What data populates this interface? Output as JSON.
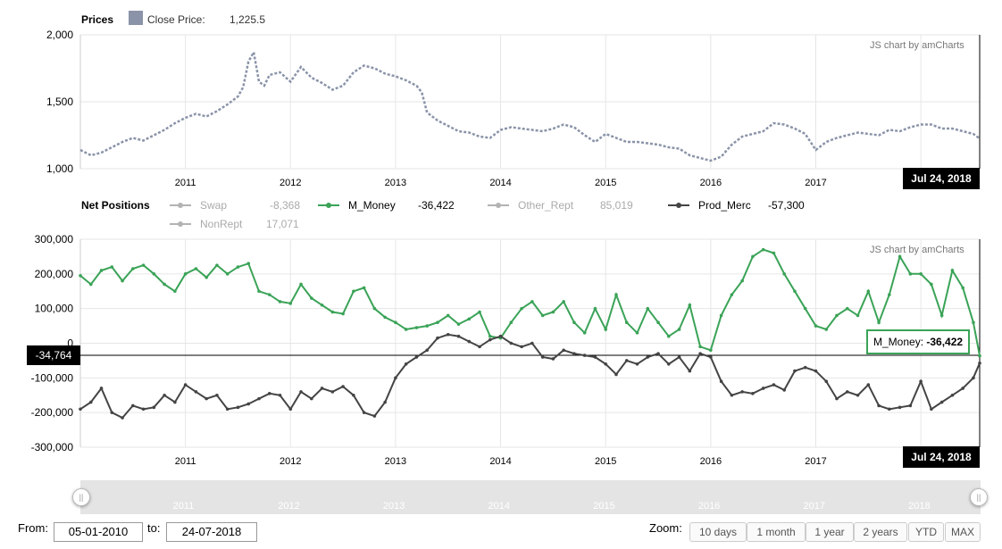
{
  "prices_panel": {
    "title": "Prices",
    "legend_label": "Close Price:",
    "legend_value": "1,225.5",
    "legend_color": "#8a93a8",
    "credit": "JS chart by amCharts",
    "cursor_date": "Jul 24, 2018"
  },
  "positions_panel": {
    "title": "Net Positions",
    "credit": "JS chart by amCharts",
    "cursor_date": "Jul 24, 2018",
    "cursor_value": "-34,764",
    "balloon_label": "M_Money:",
    "balloon_value": "-36,422",
    "legend": [
      {
        "name": "Swap",
        "value": "-8,368",
        "color": "#b3b3b3",
        "active": false
      },
      {
        "name": "M_Money",
        "value": "-36,422",
        "color": "#3aa357",
        "active": true
      },
      {
        "name": "Other_Rept",
        "value": "85,019",
        "color": "#b3b3b3",
        "active": false
      },
      {
        "name": "Prod_Merc",
        "value": "-57,300",
        "color": "#444444",
        "active": true
      },
      {
        "name": "NonRept",
        "value": "17,071",
        "color": "#b3b3b3",
        "active": false
      }
    ]
  },
  "scrollbar": {
    "labels": [
      "2011",
      "2012",
      "2013",
      "2014",
      "2015",
      "2016",
      "2017",
      "2018"
    ],
    "handle_left": "||",
    "handle_right": "||"
  },
  "controls": {
    "from_label": "From:",
    "from_value": "05-01-2010",
    "to_label": "to:",
    "to_value": "24-07-2018",
    "zoom_label": "Zoom:",
    "zoom_buttons": [
      "10 days",
      "1 month",
      "1 year",
      "2 years",
      "YTD",
      "MAX"
    ]
  },
  "chart_data": [
    {
      "type": "line",
      "title": "Prices",
      "ylim": [
        1000,
        2000
      ],
      "yticks": [
        "1,000",
        "1,500",
        "2,000"
      ],
      "ytick_values": [
        1000,
        1500,
        2000
      ],
      "xticks": [
        "2011",
        "2012",
        "2013",
        "2014",
        "2015",
        "2016",
        "2017",
        "2018"
      ],
      "xlim": [
        2010.0,
        2018.56
      ],
      "grid": true,
      "series": [
        {
          "name": "Close Price",
          "color": "#8a93a8",
          "x": [
            2010.0,
            2010.1,
            2010.2,
            2010.3,
            2010.4,
            2010.5,
            2010.6,
            2010.7,
            2010.8,
            2010.9,
            2011.0,
            2011.1,
            2011.2,
            2011.3,
            2011.4,
            2011.5,
            2011.55,
            2011.6,
            2011.65,
            2011.7,
            2011.75,
            2011.8,
            2011.9,
            2012.0,
            2012.1,
            2012.15,
            2012.2,
            2012.3,
            2012.4,
            2012.5,
            2012.6,
            2012.7,
            2012.8,
            2012.9,
            2013.0,
            2013.1,
            2013.2,
            2013.25,
            2013.3,
            2013.4,
            2013.5,
            2013.6,
            2013.7,
            2013.8,
            2013.9,
            2014.0,
            2014.1,
            2014.2,
            2014.3,
            2014.4,
            2014.5,
            2014.6,
            2014.7,
            2014.8,
            2014.9,
            2015.0,
            2015.1,
            2015.2,
            2015.3,
            2015.4,
            2015.5,
            2015.6,
            2015.7,
            2015.8,
            2015.9,
            2016.0,
            2016.1,
            2016.2,
            2016.3,
            2016.4,
            2016.5,
            2016.6,
            2016.7,
            2016.8,
            2016.9,
            2017.0,
            2017.1,
            2017.2,
            2017.3,
            2017.4,
            2017.5,
            2017.6,
            2017.7,
            2017.8,
            2017.9,
            2018.0,
            2018.1,
            2018.2,
            2018.3,
            2018.4,
            2018.5,
            2018.56
          ],
          "values": [
            1140,
            1100,
            1120,
            1160,
            1200,
            1230,
            1210,
            1250,
            1290,
            1340,
            1380,
            1410,
            1390,
            1430,
            1480,
            1540,
            1610,
            1800,
            1870,
            1650,
            1620,
            1700,
            1720,
            1650,
            1760,
            1720,
            1680,
            1640,
            1590,
            1620,
            1720,
            1770,
            1750,
            1710,
            1690,
            1660,
            1620,
            1570,
            1420,
            1360,
            1320,
            1280,
            1270,
            1240,
            1230,
            1290,
            1310,
            1300,
            1290,
            1280,
            1300,
            1330,
            1310,
            1250,
            1200,
            1260,
            1230,
            1200,
            1200,
            1190,
            1180,
            1160,
            1150,
            1100,
            1080,
            1060,
            1090,
            1180,
            1240,
            1260,
            1280,
            1340,
            1330,
            1300,
            1260,
            1140,
            1200,
            1230,
            1250,
            1270,
            1260,
            1250,
            1290,
            1280,
            1310,
            1330,
            1330,
            1300,
            1300,
            1280,
            1260,
            1225.5
          ]
        }
      ]
    },
    {
      "type": "line",
      "title": "Net Positions",
      "ylim": [
        -300000,
        300000
      ],
      "yticks": [
        "-300,000",
        "-200,000",
        "-100,000",
        "0",
        "100,000",
        "200,000",
        "300,000"
      ],
      "ytick_values": [
        -300000,
        -200000,
        -100000,
        0,
        100000,
        200000,
        300000
      ],
      "xticks": [
        "2011",
        "2012",
        "2013",
        "2014",
        "2015",
        "2016",
        "2017",
        "2018"
      ],
      "xlim": [
        2010.0,
        2018.56
      ],
      "grid": true,
      "series": [
        {
          "name": "M_Money",
          "color": "#3aa357",
          "x": [
            2010.0,
            2010.1,
            2010.2,
            2010.3,
            2010.4,
            2010.5,
            2010.6,
            2010.7,
            2010.8,
            2010.9,
            2011.0,
            2011.1,
            2011.2,
            2011.3,
            2011.4,
            2011.5,
            2011.6,
            2011.7,
            2011.8,
            2011.9,
            2012.0,
            2012.1,
            2012.2,
            2012.3,
            2012.4,
            2012.5,
            2012.6,
            2012.7,
            2012.8,
            2012.9,
            2013.0,
            2013.1,
            2013.2,
            2013.3,
            2013.4,
            2013.5,
            2013.6,
            2013.7,
            2013.8,
            2013.9,
            2014.0,
            2014.1,
            2014.2,
            2014.3,
            2014.4,
            2014.5,
            2014.6,
            2014.7,
            2014.8,
            2014.9,
            2015.0,
            2015.1,
            2015.2,
            2015.3,
            2015.4,
            2015.5,
            2015.6,
            2015.7,
            2015.8,
            2015.9,
            2016.0,
            2016.1,
            2016.2,
            2016.3,
            2016.4,
            2016.5,
            2016.6,
            2016.7,
            2016.8,
            2016.9,
            2017.0,
            2017.1,
            2017.2,
            2017.3,
            2017.4,
            2017.5,
            2017.6,
            2017.7,
            2017.8,
            2017.9,
            2018.0,
            2018.1,
            2018.2,
            2018.3,
            2018.4,
            2018.5,
            2018.56
          ],
          "values": [
            195000,
            170000,
            210000,
            220000,
            180000,
            215000,
            225000,
            200000,
            170000,
            150000,
            200000,
            215000,
            190000,
            225000,
            200000,
            220000,
            230000,
            150000,
            140000,
            120000,
            115000,
            170000,
            130000,
            110000,
            90000,
            85000,
            150000,
            160000,
            100000,
            75000,
            60000,
            40000,
            45000,
            50000,
            60000,
            80000,
            55000,
            70000,
            90000,
            20000,
            15000,
            60000,
            100000,
            120000,
            80000,
            90000,
            120000,
            60000,
            30000,
            100000,
            40000,
            140000,
            60000,
            30000,
            100000,
            60000,
            20000,
            40000,
            110000,
            -10000,
            -20000,
            80000,
            140000,
            180000,
            250000,
            270000,
            260000,
            200000,
            150000,
            100000,
            50000,
            40000,
            80000,
            100000,
            80000,
            150000,
            60000,
            140000,
            250000,
            200000,
            200000,
            170000,
            80000,
            210000,
            160000,
            60000,
            -36422
          ]
        },
        {
          "name": "Prod_Merc",
          "color": "#444444",
          "x": [
            2010.0,
            2010.1,
            2010.2,
            2010.3,
            2010.4,
            2010.5,
            2010.6,
            2010.7,
            2010.8,
            2010.9,
            2011.0,
            2011.1,
            2011.2,
            2011.3,
            2011.4,
            2011.5,
            2011.6,
            2011.7,
            2011.8,
            2011.9,
            2012.0,
            2012.1,
            2012.2,
            2012.3,
            2012.4,
            2012.5,
            2012.6,
            2012.7,
            2012.8,
            2012.9,
            2013.0,
            2013.1,
            2013.2,
            2013.3,
            2013.4,
            2013.5,
            2013.6,
            2013.7,
            2013.8,
            2013.9,
            2014.0,
            2014.1,
            2014.2,
            2014.3,
            2014.4,
            2014.5,
            2014.6,
            2014.7,
            2014.8,
            2014.9,
            2015.0,
            2015.1,
            2015.2,
            2015.3,
            2015.4,
            2015.5,
            2015.6,
            2015.7,
            2015.8,
            2015.9,
            2016.0,
            2016.1,
            2016.2,
            2016.3,
            2016.4,
            2016.5,
            2016.6,
            2016.7,
            2016.8,
            2016.9,
            2017.0,
            2017.1,
            2017.2,
            2017.3,
            2017.4,
            2017.5,
            2017.6,
            2017.7,
            2017.8,
            2017.9,
            2018.0,
            2018.1,
            2018.2,
            2018.3,
            2018.4,
            2018.5,
            2018.56
          ],
          "values": [
            -190000,
            -170000,
            -130000,
            -200000,
            -215000,
            -180000,
            -190000,
            -185000,
            -150000,
            -170000,
            -120000,
            -140000,
            -160000,
            -150000,
            -190000,
            -185000,
            -175000,
            -160000,
            -145000,
            -150000,
            -190000,
            -140000,
            -160000,
            -130000,
            -140000,
            -125000,
            -150000,
            -200000,
            -210000,
            -170000,
            -100000,
            -60000,
            -40000,
            -20000,
            15000,
            25000,
            20000,
            5000,
            -10000,
            10000,
            20000,
            0,
            -10000,
            0,
            -40000,
            -45000,
            -20000,
            -30000,
            -35000,
            -40000,
            -60000,
            -90000,
            -50000,
            -60000,
            -40000,
            -30000,
            -60000,
            -40000,
            -80000,
            -30000,
            -40000,
            -110000,
            -150000,
            -140000,
            -145000,
            -130000,
            -120000,
            -135000,
            -80000,
            -70000,
            -80000,
            -110000,
            -160000,
            -140000,
            -150000,
            -120000,
            -180000,
            -190000,
            -185000,
            -180000,
            -110000,
            -190000,
            -170000,
            -150000,
            -130000,
            -100000,
            -57300
          ]
        }
      ]
    }
  ]
}
